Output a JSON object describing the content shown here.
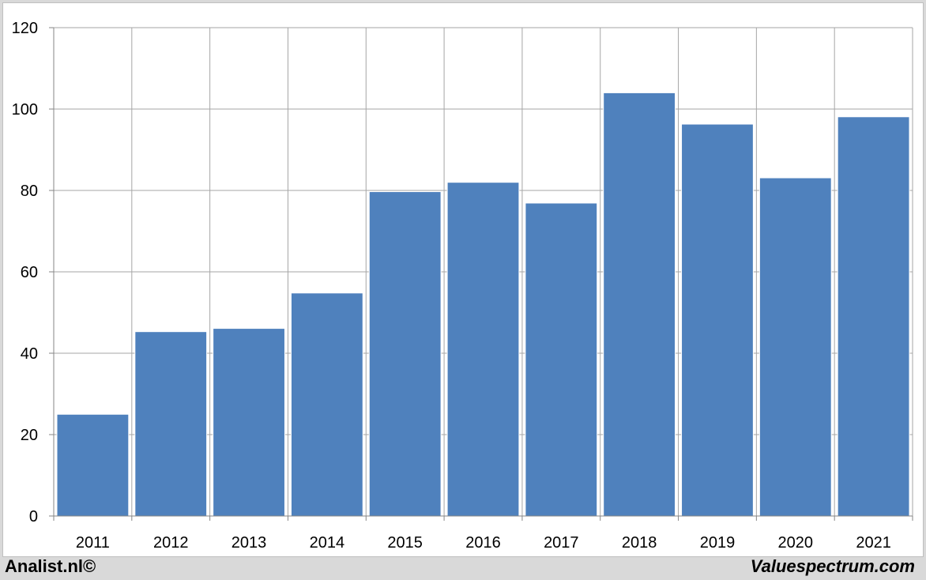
{
  "chart_data": {
    "type": "bar",
    "categories": [
      "2011",
      "2012",
      "2013",
      "2014",
      "2015",
      "2016",
      "2017",
      "2018",
      "2019",
      "2020",
      "2021"
    ],
    "values": [
      25,
      45.3,
      46.1,
      54.8,
      79.7,
      82,
      76.9,
      104,
      96.3,
      83.1,
      98.1
    ],
    "ylim": [
      0,
      120
    ],
    "yticks": [
      0,
      20,
      40,
      60,
      80,
      100,
      120
    ],
    "grid": true,
    "bar_color": "#4f81bd",
    "grid_color": "#a6a6a6"
  },
  "footer": {
    "left": "Analist.nl©",
    "right": "Valuespectrum.com"
  }
}
